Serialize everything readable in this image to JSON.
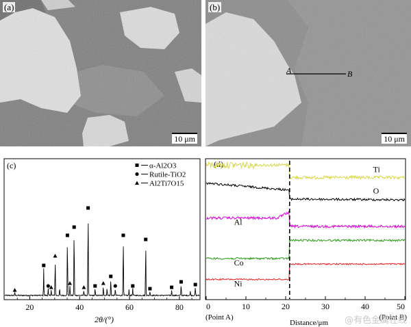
{
  "panel_a": {
    "label": "(a)",
    "scale": "10 μm"
  },
  "panel_b": {
    "label": "(b)",
    "scale": "10 μm",
    "point_a": "A",
    "point_b": "B"
  },
  "chart_data": [
    {
      "type": "bar",
      "panel_label": "(c)",
      "xlabel": "2θ/(°)",
      "ylabel": "",
      "xlim": [
        10,
        88
      ],
      "xticks": [
        20,
        40,
        60,
        80
      ],
      "grid": false,
      "legend_position": "top-right",
      "legend": [
        {
          "marker": "square",
          "label": "α-Al2O3"
        },
        {
          "marker": "circle",
          "label": "Rutile-TiO2"
        },
        {
          "marker": "triangle",
          "label": "Al2Ti7O15"
        }
      ],
      "peaks": [
        {
          "x": 14.0,
          "h": 0.02,
          "m": "triangle"
        },
        {
          "x": 25.6,
          "h": 0.2,
          "m": "square"
        },
        {
          "x": 27.4,
          "h": 0.05,
          "m": "circle"
        },
        {
          "x": 28.6,
          "h": 0.04,
          "m": "triangle"
        },
        {
          "x": 30.2,
          "h": 0.27,
          "m": "triangle"
        },
        {
          "x": 32.0,
          "h": 0.05,
          "m": ""
        },
        {
          "x": 35.1,
          "h": 0.42,
          "m": "square"
        },
        {
          "x": 36.1,
          "h": 0.07,
          "m": "triangle"
        },
        {
          "x": 37.8,
          "h": 0.48,
          "m": "square"
        },
        {
          "x": 41.7,
          "h": 0.04,
          "m": "triangle"
        },
        {
          "x": 43.4,
          "h": 0.62,
          "m": "square"
        },
        {
          "x": 46.2,
          "h": 0.05,
          "m": "square"
        },
        {
          "x": 49.5,
          "h": 0.07,
          "m": "triangle"
        },
        {
          "x": 51.0,
          "h": 0.06,
          "m": ""
        },
        {
          "x": 52.5,
          "h": 0.12,
          "m": "square"
        },
        {
          "x": 54.3,
          "h": 0.05,
          "m": "circle"
        },
        {
          "x": 57.5,
          "h": 0.42,
          "m": "square"
        },
        {
          "x": 59.8,
          "h": 0.04,
          "m": ""
        },
        {
          "x": 61.3,
          "h": 0.05,
          "m": "square"
        },
        {
          "x": 66.5,
          "h": 0.39,
          "m": "square"
        },
        {
          "x": 68.2,
          "h": 0.03,
          "m": "square"
        },
        {
          "x": 76.9,
          "h": 0.04,
          "m": "square"
        },
        {
          "x": 80.7,
          "h": 0.08,
          "m": "square"
        },
        {
          "x": 84.4,
          "h": 0.03,
          "m": ""
        },
        {
          "x": 86.4,
          "h": 0.06,
          "m": "square"
        }
      ]
    },
    {
      "type": "line",
      "panel_label": "(d)",
      "xlabel": "Distance/μm",
      "xlim": [
        0,
        50
      ],
      "xticks": [
        0,
        10,
        20,
        30,
        40,
        50
      ],
      "x_start_label": "(Point A)",
      "x_end_label": "(Point B)",
      "interface_x": 21,
      "series": [
        {
          "name": "Ti",
          "color": "#d6d64a",
          "left": 0.04,
          "right": 0.13,
          "noise": 0.022
        },
        {
          "name": "O",
          "color": "#000000",
          "left": 0.17,
          "right": 0.29,
          "noise": 0.016
        },
        {
          "name": "Al",
          "color": "#d400d4",
          "left": 0.42,
          "right": 0.48,
          "noise": 0.018
        },
        {
          "name": "Co",
          "color": "#2f9b1a",
          "left": 0.71,
          "right": 0.58,
          "noise": 0.014
        },
        {
          "name": "Ni",
          "color": "#e02020",
          "left": 0.86,
          "right": 0.75,
          "noise": 0.01
        }
      ]
    }
  ],
  "watermark": "@有色金属在线"
}
